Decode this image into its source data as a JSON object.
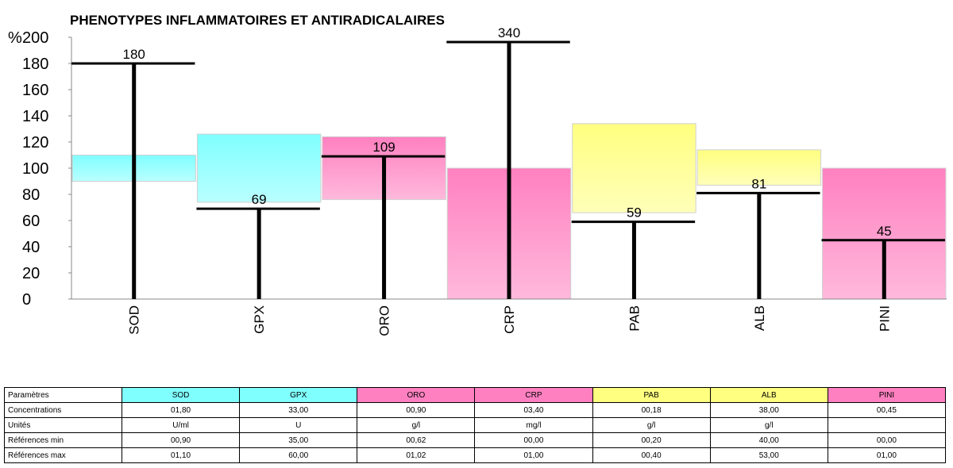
{
  "chart_data": {
    "type": "bar",
    "title": "PHENOTYPES INFLAMMATOIRES ET ANTIRADICALAIRES",
    "ylabel": "%",
    "ylim": [
      0,
      200
    ],
    "yticks": [
      0,
      20,
      40,
      60,
      80,
      100,
      120,
      140,
      160,
      180,
      200
    ],
    "categories": [
      "SOD",
      "GPX",
      "ORO",
      "CRP",
      "PAB",
      "ALB",
      "PINI"
    ],
    "values": [
      180,
      69,
      109,
      340,
      59,
      81,
      45
    ],
    "value_labels": [
      "180",
      "69",
      "109",
      "340",
      "59",
      "81",
      "45"
    ],
    "reference_bands": [
      {
        "low": 90,
        "high": 110,
        "color": "#80ffff"
      },
      {
        "low": 74,
        "high": 126,
        "color": "#80ffff"
      },
      {
        "low": 76,
        "high": 124,
        "color": "#ff80c0"
      },
      {
        "low": 0,
        "high": 100,
        "color": "#ff80c0"
      },
      {
        "low": 66,
        "high": 134,
        "color": "#ffff80"
      },
      {
        "low": 87,
        "high": 114,
        "color": "#ffff80"
      },
      {
        "low": 0,
        "high": 100,
        "color": "#ff80c0"
      }
    ],
    "grid": false
  },
  "table": {
    "header_label": "Paramètres",
    "columns": [
      {
        "name": "SOD",
        "color": "#80ffff"
      },
      {
        "name": "GPX",
        "color": "#80ffff"
      },
      {
        "name": "ORO",
        "color": "#ff80c0"
      },
      {
        "name": "CRP",
        "color": "#ff80c0"
      },
      {
        "name": "PAB",
        "color": "#ffff80"
      },
      {
        "name": "ALB",
        "color": "#ffff80"
      },
      {
        "name": "PINI",
        "color": "#ff80c0"
      }
    ],
    "rows": [
      {
        "label": "Concentrations",
        "values": [
          "01,80",
          "33,00",
          "00,90",
          "03,40",
          "00,18",
          "38,00",
          "00,45"
        ]
      },
      {
        "label": "Unités",
        "values": [
          "U/ml",
          "U",
          "g/l",
          "mg/l",
          "g/l",
          "g/l",
          ""
        ]
      },
      {
        "label": "Références min",
        "values": [
          "00,90",
          "35,00",
          "00,62",
          "00,00",
          "00,20",
          "40,00",
          "00,00"
        ]
      },
      {
        "label": "Références max",
        "values": [
          "01,10",
          "60,00",
          "01,02",
          "01,00",
          "00,40",
          "53,00",
          "01,00"
        ]
      }
    ]
  }
}
